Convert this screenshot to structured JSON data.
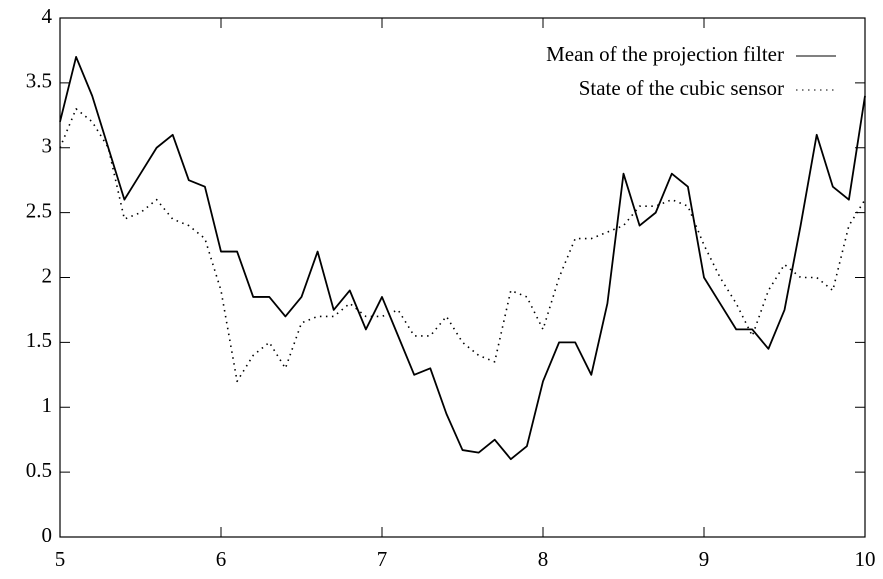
{
  "chart_data": {
    "type": "line",
    "x": [
      5,
      5.1,
      5.2,
      5.3,
      5.4,
      5.5,
      5.6,
      5.7,
      5.8,
      5.9,
      6,
      6.1,
      6.2,
      6.3,
      6.4,
      6.5,
      6.6,
      6.7,
      6.8,
      6.9,
      7,
      7.1,
      7.2,
      7.3,
      7.4,
      7.5,
      7.6,
      7.7,
      7.8,
      7.9,
      8,
      8.1,
      8.2,
      8.3,
      8.4,
      8.5,
      8.6,
      8.7,
      8.8,
      8.9,
      9,
      9.1,
      9.2,
      9.3,
      9.4,
      9.5,
      9.6,
      9.7,
      9.8,
      9.9,
      10
    ],
    "series": [
      {
        "name": "Mean of the projection filter",
        "color": "#000000",
        "style": "solid",
        "values": [
          3.2,
          3.7,
          3.4,
          3.0,
          2.6,
          2.8,
          3.0,
          3.1,
          2.75,
          2.7,
          2.2,
          2.2,
          1.85,
          1.85,
          1.7,
          1.85,
          2.2,
          1.75,
          1.9,
          1.6,
          1.85,
          1.55,
          1.25,
          1.3,
          0.95,
          0.67,
          0.65,
          0.75,
          0.6,
          0.7,
          1.2,
          1.5,
          1.5,
          1.25,
          1.8,
          2.8,
          2.4,
          2.5,
          2.8,
          2.7,
          2.0,
          1.8,
          1.6,
          1.6,
          1.45,
          1.75,
          2.4,
          3.1,
          2.7,
          2.6,
          3.4
        ]
      },
      {
        "name": "State of the cubic sensor",
        "color": "#000000",
        "style": "dotted",
        "values": [
          3.0,
          3.3,
          3.2,
          3.0,
          2.45,
          2.5,
          2.6,
          2.45,
          2.4,
          2.3,
          1.9,
          1.2,
          1.4,
          1.5,
          1.3,
          1.65,
          1.7,
          1.7,
          1.8,
          1.7,
          1.7,
          1.75,
          1.55,
          1.55,
          1.7,
          1.5,
          1.4,
          1.35,
          1.9,
          1.85,
          1.6,
          2.0,
          2.3,
          2.3,
          2.35,
          2.4,
          2.55,
          2.55,
          2.6,
          2.55,
          2.25,
          2.0,
          1.8,
          1.55,
          1.9,
          2.1,
          2.0,
          2.0,
          1.9,
          2.4,
          2.6
        ]
      }
    ],
    "xlim": [
      5,
      10
    ],
    "xticks": [
      5,
      6,
      7,
      8,
      9,
      10
    ],
    "ylim": [
      0,
      4
    ],
    "yticks": [
      0,
      0.5,
      1,
      1.5,
      2,
      2.5,
      3,
      3.5,
      4
    ],
    "grid": false,
    "legend": "top-right"
  }
}
